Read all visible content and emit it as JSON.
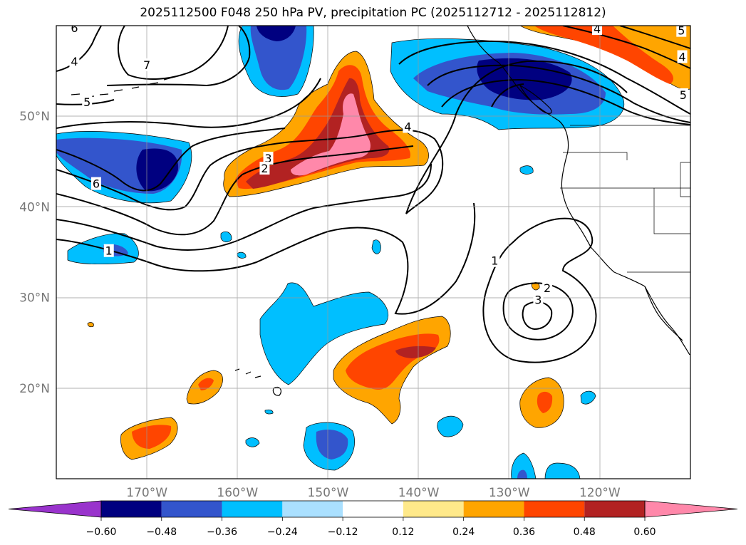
{
  "chart_data": {
    "type": "contour-map",
    "title": "2025112500 F048 250 hPa PV, precipitation PC (2025112712 - 2025112812)",
    "region": {
      "lon_range": [
        -180,
        -110
      ],
      "lat_range": [
        10,
        60
      ]
    },
    "grid": true,
    "lat_ticks": [
      {
        "value": 50,
        "label": "50°N"
      },
      {
        "value": 40,
        "label": "40°N"
      },
      {
        "value": 30,
        "label": "30°N"
      },
      {
        "value": 20,
        "label": "20°N"
      }
    ],
    "lon_ticks": [
      {
        "value": -170,
        "label": "170°W"
      },
      {
        "value": -160,
        "label": "160°W"
      },
      {
        "value": -150,
        "label": "150°W"
      },
      {
        "value": -140,
        "label": "140°W"
      },
      {
        "value": -130,
        "label": "130°W"
      },
      {
        "value": -120,
        "label": "120°W"
      }
    ],
    "colorbar": {
      "orientation": "horizontal",
      "extend": "both",
      "levels": [
        "−0.60",
        "−0.48",
        "−0.36",
        "−0.24",
        "−0.12",
        "0.12",
        "0.24",
        "0.36",
        "0.48",
        "0.60"
      ],
      "colors": [
        "#9933cc",
        "#000080",
        "#3355cc",
        "#00bfff",
        "#aae0ff",
        "#ffffff",
        "#ffe98a",
        "#ffa500",
        "#ff4500",
        "#b22222",
        "#ff88aa"
      ]
    },
    "pv_contour_labels": [
      {
        "text": "6",
        "lon": -178.0,
        "lat": 59.7
      },
      {
        "text": "4",
        "lon": -178.0,
        "lat": 56.0
      },
      {
        "text": "5",
        "lon": -176.6,
        "lat": 51.5
      },
      {
        "text": "7",
        "lon": -170.0,
        "lat": 55.6
      },
      {
        "text": "6",
        "lon": -175.6,
        "lat": 42.5
      },
      {
        "text": "1",
        "lon": -174.2,
        "lat": 35.1
      },
      {
        "text": "3",
        "lon": -156.6,
        "lat": 45.3
      },
      {
        "text": "2",
        "lon": -157.0,
        "lat": 44.2
      },
      {
        "text": "4",
        "lon": -141.2,
        "lat": 48.8
      },
      {
        "text": "1",
        "lon": -131.6,
        "lat": 34.0
      },
      {
        "text": "2",
        "lon": -125.8,
        "lat": 31.0
      },
      {
        "text": "3",
        "lon": -126.8,
        "lat": 29.7
      },
      {
        "text": "4",
        "lon": -120.3,
        "lat": 59.6
      },
      {
        "text": "5",
        "lon": -111.0,
        "lat": 59.4
      },
      {
        "text": "4",
        "lon": -110.9,
        "lat": 56.5
      },
      {
        "text": "5",
        "lon": -110.8,
        "lat": 52.3
      }
    ]
  }
}
